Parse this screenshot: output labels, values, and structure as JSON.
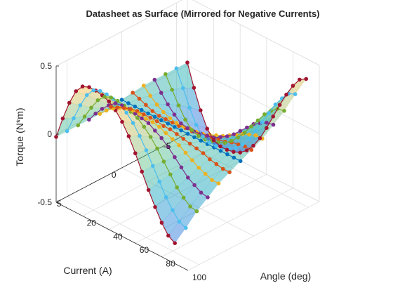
{
  "chart_data": {
    "type": "surface",
    "title": "Datasheet as Surface (Mirrored for Negative Currents)",
    "xlabel": "Angle (deg)",
    "ylabel": "Current (A)",
    "zlabel": "Torque (N*m)",
    "xlim": [
      0,
      100
    ],
    "ylim": [
      -6,
      6
    ],
    "zlim": [
      -0.5,
      0.5
    ],
    "x_ticks": [
      20,
      40,
      60,
      80,
      100
    ],
    "y_ticks": [
      5,
      0,
      -5
    ],
    "z_ticks": [
      0.5,
      0,
      -0.5
    ],
    "grid": true,
    "angle_samples_deg": [
      0,
      5,
      10,
      15,
      20,
      25,
      30,
      35,
      40,
      45,
      50,
      55,
      60,
      65,
      70,
      75,
      80,
      85,
      90
    ],
    "series": [
      {
        "current": 6,
        "color": "#A2142F",
        "torque": [
          -0.02,
          0.14,
          0.28,
          0.39,
          0.45,
          0.47,
          0.47,
          0.46,
          0.44,
          0.4,
          0.34,
          0.26,
          0.16,
          0.05,
          -0.06,
          -0.16,
          -0.25,
          -0.32,
          -0.35
        ]
      },
      {
        "current": 5,
        "color": "#4DBEEE",
        "torque": [
          -0.02,
          0.1,
          0.22,
          0.32,
          0.38,
          0.4,
          0.4,
          0.39,
          0.37,
          0.34,
          0.29,
          0.22,
          0.14,
          0.05,
          -0.04,
          -0.13,
          -0.2,
          -0.26,
          -0.28
        ]
      },
      {
        "current": 4,
        "color": "#77AC30",
        "torque": [
          -0.02,
          0.07,
          0.16,
          0.24,
          0.29,
          0.31,
          0.31,
          0.3,
          0.28,
          0.26,
          0.22,
          0.17,
          0.11,
          0.04,
          -0.03,
          -0.1,
          -0.15,
          -0.19,
          -0.2
        ]
      },
      {
        "current": 3,
        "color": "#7E2F8E",
        "torque": [
          -0.02,
          0.05,
          0.11,
          0.16,
          0.2,
          0.21,
          0.21,
          0.2,
          0.19,
          0.18,
          0.15,
          0.12,
          0.08,
          0.03,
          -0.02,
          -0.07,
          -0.1,
          -0.13,
          -0.14
        ]
      },
      {
        "current": 2,
        "color": "#EDB120",
        "torque": [
          -0.02,
          0.03,
          0.07,
          0.1,
          0.12,
          0.13,
          0.13,
          0.12,
          0.12,
          0.11,
          0.09,
          0.07,
          0.05,
          0.02,
          -0.01,
          -0.04,
          -0.06,
          -0.08,
          -0.08
        ]
      },
      {
        "current": 1,
        "color": "#D95319",
        "torque": [
          -0.01,
          0.01,
          0.03,
          0.05,
          0.06,
          0.06,
          0.06,
          0.06,
          0.05,
          0.05,
          0.04,
          0.03,
          0.02,
          0.01,
          0.0,
          -0.02,
          -0.03,
          -0.04,
          -0.04
        ]
      },
      {
        "current": 0,
        "color": "#0072BD",
        "torque": [
          0,
          0,
          0,
          0,
          0,
          0,
          0,
          0,
          0,
          0,
          0,
          0,
          0,
          0,
          0,
          0,
          0,
          0,
          0
        ]
      },
      {
        "current": -1,
        "color": "#D95319",
        "torque": [
          0.01,
          -0.01,
          -0.03,
          -0.05,
          -0.06,
          -0.06,
          -0.06,
          -0.06,
          -0.05,
          -0.05,
          -0.04,
          -0.03,
          -0.02,
          -0.01,
          0.0,
          0.02,
          0.03,
          0.04,
          0.04
        ]
      },
      {
        "current": -2,
        "color": "#EDB120",
        "torque": [
          0.02,
          -0.03,
          -0.07,
          -0.1,
          -0.12,
          -0.13,
          -0.13,
          -0.12,
          -0.12,
          -0.11,
          -0.09,
          -0.07,
          -0.05,
          -0.02,
          0.01,
          0.04,
          0.06,
          0.08,
          0.08
        ]
      },
      {
        "current": -3,
        "color": "#7E2F8E",
        "torque": [
          0.02,
          -0.05,
          -0.11,
          -0.16,
          -0.2,
          -0.21,
          -0.21,
          -0.2,
          -0.19,
          -0.18,
          -0.15,
          -0.12,
          -0.08,
          -0.03,
          0.02,
          0.07,
          0.1,
          0.13,
          0.14
        ]
      },
      {
        "current": -4,
        "color": "#77AC30",
        "torque": [
          0.02,
          -0.07,
          -0.16,
          -0.24,
          -0.29,
          -0.31,
          -0.31,
          -0.3,
          -0.28,
          -0.26,
          -0.22,
          -0.17,
          -0.11,
          -0.04,
          0.03,
          0.1,
          0.15,
          0.19,
          0.2
        ]
      },
      {
        "current": -5,
        "color": "#4DBEEE",
        "torque": [
          0.02,
          -0.1,
          -0.22,
          -0.32,
          -0.38,
          -0.4,
          -0.4,
          -0.39,
          -0.37,
          -0.34,
          -0.29,
          -0.22,
          -0.14,
          -0.05,
          0.04,
          0.13,
          0.2,
          0.26,
          0.28
        ]
      },
      {
        "current": -6,
        "color": "#A2142F",
        "torque": [
          0.02,
          -0.14,
          -0.28,
          -0.39,
          -0.45,
          -0.47,
          -0.47,
          -0.46,
          -0.44,
          -0.4,
          -0.34,
          -0.26,
          -0.16,
          -0.05,
          0.06,
          0.16,
          0.25,
          0.32,
          0.35
        ]
      }
    ]
  }
}
